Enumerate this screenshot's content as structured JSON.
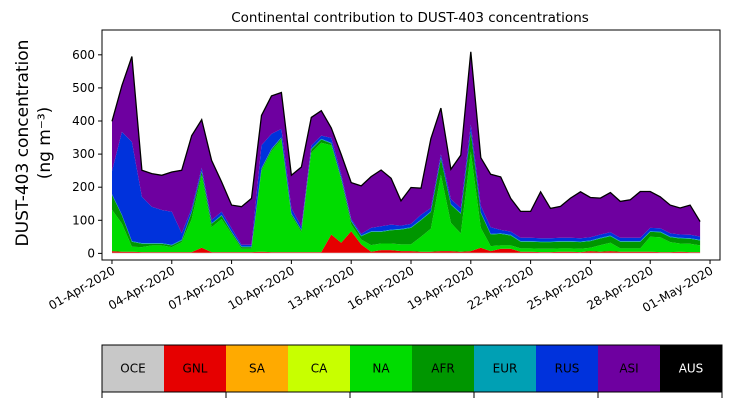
{
  "chart_data": {
    "type": "area",
    "stacked": true,
    "title": "Continental contribution to DUST-403 concentrations",
    "ylabel_line1": "DUST-403 concentration",
    "ylabel_line2": "(ng m⁻³)",
    "xlabel": "",
    "xlim_days": [
      -0.5,
      30.5
    ],
    "ylim": [
      -20,
      675
    ],
    "yticks": [
      0,
      100,
      200,
      300,
      400,
      500,
      600
    ],
    "xticks": [
      {
        "day": 0,
        "label": "01-Apr-2020"
      },
      {
        "day": 3,
        "label": "04-Apr-2020"
      },
      {
        "day": 6,
        "label": "07-Apr-2020"
      },
      {
        "day": 9,
        "label": "10-Apr-2020"
      },
      {
        "day": 12,
        "label": "13-Apr-2020"
      },
      {
        "day": 15,
        "label": "16-Apr-2020"
      },
      {
        "day": 18,
        "label": "19-Apr-2020"
      },
      {
        "day": 21,
        "label": "22-Apr-2020"
      },
      {
        "day": 24,
        "label": "25-Apr-2020"
      },
      {
        "day": 27,
        "label": "28-Apr-2020"
      },
      {
        "day": 30,
        "label": "01-May-2020"
      }
    ],
    "x": [
      "2020-04-01",
      "2020-04-01T12",
      "2020-04-02",
      "2020-04-02T12",
      "2020-04-03",
      "2020-04-03T12",
      "2020-04-04",
      "2020-04-04T12",
      "2020-04-05",
      "2020-04-05T12",
      "2020-04-06",
      "2020-04-06T12",
      "2020-04-07",
      "2020-04-07T12",
      "2020-04-08",
      "2020-04-08T12",
      "2020-04-09",
      "2020-04-09T12",
      "2020-04-10",
      "2020-04-10T12",
      "2020-04-11",
      "2020-04-11T12",
      "2020-04-12",
      "2020-04-12T12",
      "2020-04-13",
      "2020-04-13T12",
      "2020-04-14",
      "2020-04-14T12",
      "2020-04-15",
      "2020-04-15T12",
      "2020-04-16",
      "2020-04-16T12",
      "2020-04-17",
      "2020-04-17T12",
      "2020-04-18",
      "2020-04-18T12",
      "2020-04-19",
      "2020-04-19T12",
      "2020-04-20",
      "2020-04-20T12",
      "2020-04-21",
      "2020-04-21T12",
      "2020-04-22",
      "2020-04-22T12",
      "2020-04-23",
      "2020-04-23T12",
      "2020-04-24",
      "2020-04-24T12",
      "2020-04-25",
      "2020-04-25T12",
      "2020-04-26",
      "2020-04-26T12",
      "2020-04-27",
      "2020-04-27T12",
      "2020-04-28",
      "2020-04-28T12",
      "2020-04-29",
      "2020-04-29T12",
      "2020-04-30",
      "2020-04-30T12"
    ],
    "series": [
      {
        "name": "OCE",
        "color": "#c8c8c8",
        "values": [
          2,
          2,
          2,
          2,
          2,
          2,
          2,
          2,
          2,
          2,
          2,
          2,
          2,
          2,
          2,
          2,
          2,
          2,
          2,
          2,
          2,
          2,
          2,
          2,
          2,
          2,
          2,
          2,
          2,
          2,
          2,
          2,
          2,
          2,
          2,
          2,
          2,
          2,
          2,
          2,
          2,
          2,
          2,
          2,
          2,
          2,
          2,
          2,
          2,
          2,
          2,
          2,
          2,
          2,
          2,
          2,
          2,
          2,
          2,
          2
        ]
      },
      {
        "name": "GNL",
        "color": "#e60000",
        "values": [
          5,
          3,
          3,
          2,
          2,
          2,
          2,
          2,
          2,
          15,
          2,
          2,
          2,
          2,
          2,
          3,
          2,
          2,
          2,
          2,
          2,
          2,
          55,
          30,
          65,
          25,
          3,
          8,
          8,
          5,
          5,
          3,
          3,
          5,
          5,
          3,
          5,
          15,
          5,
          12,
          12,
          3,
          3,
          2,
          2,
          3,
          3,
          2,
          5,
          3,
          5,
          3,
          3,
          3,
          3,
          2,
          2,
          3,
          2,
          2
        ]
      },
      {
        "name": "SA",
        "color": "#ffaa00",
        "values": [
          0,
          0,
          0,
          0,
          0,
          0,
          0,
          0,
          0,
          0,
          0,
          0,
          0,
          0,
          0,
          0,
          0,
          0,
          0,
          0,
          0,
          0,
          0,
          0,
          0,
          0,
          0,
          0,
          0,
          0,
          0,
          0,
          0,
          0,
          0,
          0,
          0,
          0,
          0,
          0,
          0,
          0,
          0,
          0,
          0,
          0,
          0,
          0,
          0,
          0,
          0,
          0,
          0,
          0,
          0,
          0,
          0,
          0,
          0,
          0
        ]
      },
      {
        "name": "CA",
        "color": "#c8ff00",
        "values": [
          0,
          0,
          0,
          0,
          0,
          0,
          0,
          0,
          0,
          0,
          0,
          0,
          0,
          0,
          0,
          0,
          0,
          0,
          0,
          0,
          0,
          0,
          0,
          0,
          0,
          0,
          0,
          0,
          0,
          0,
          0,
          0,
          0,
          0,
          0,
          0,
          0,
          0,
          0,
          0,
          0,
          0,
          0,
          0,
          0,
          0,
          0,
          0,
          0,
          0,
          0,
          0,
          0,
          0,
          0,
          0,
          0,
          0,
          0,
          0
        ]
      },
      {
        "name": "NA",
        "color": "#00dc00",
        "values": [
          125,
          85,
          15,
          15,
          20,
          20,
          15,
          30,
          100,
          220,
          75,
          100,
          55,
          10,
          10,
          245,
          305,
          340,
          110,
          60,
          300,
          330,
          270,
          190,
          20,
          15,
          20,
          20,
          20,
          20,
          20,
          45,
          70,
          230,
          85,
          55,
          300,
          60,
          15,
          10,
          10,
          10,
          10,
          10,
          10,
          10,
          10,
          10,
          10,
          20,
          25,
          10,
          10,
          10,
          45,
          45,
          30,
          25,
          25,
          20
        ]
      },
      {
        "name": "AFR",
        "color": "#009600",
        "values": [
          45,
          25,
          15,
          10,
          5,
          5,
          5,
          5,
          20,
          10,
          10,
          10,
          5,
          5,
          5,
          5,
          5,
          5,
          5,
          5,
          10,
          10,
          5,
          5,
          10,
          10,
          40,
          35,
          40,
          45,
          50,
          50,
          50,
          50,
          55,
          60,
          60,
          45,
          35,
          35,
          30,
          20,
          20,
          20,
          20,
          20,
          20,
          20,
          20,
          20,
          20,
          20,
          20,
          20,
          15,
          15,
          15,
          15,
          15,
          15
        ]
      },
      {
        "name": "EUR",
        "color": "#00a0b4",
        "values": [
          2,
          2,
          2,
          2,
          2,
          2,
          2,
          2,
          2,
          2,
          2,
          2,
          2,
          2,
          2,
          2,
          2,
          2,
          2,
          2,
          2,
          2,
          2,
          2,
          2,
          2,
          2,
          2,
          2,
          2,
          2,
          2,
          2,
          2,
          2,
          2,
          2,
          2,
          2,
          2,
          2,
          2,
          2,
          2,
          2,
          2,
          2,
          2,
          2,
          2,
          2,
          2,
          2,
          2,
          2,
          2,
          2,
          2,
          2,
          2
        ]
      },
      {
        "name": "RUS",
        "color": "#0032dc",
        "values": [
          70,
          250,
          300,
          140,
          110,
          100,
          100,
          20,
          10,
          10,
          10,
          10,
          10,
          5,
          5,
          70,
          45,
          25,
          15,
          10,
          10,
          10,
          15,
          10,
          5,
          5,
          10,
          15,
          15,
          10,
          10,
          15,
          10,
          10,
          15,
          15,
          20,
          20,
          20,
          10,
          10,
          10,
          10,
          10,
          10,
          10,
          10,
          10,
          10,
          10,
          10,
          10,
          10,
          10,
          10,
          10,
          10,
          10,
          10,
          10
        ]
      },
      {
        "name": "ASI",
        "color": "#6e00a0",
        "values": [
          150,
          140,
          258,
          80,
          100,
          105,
          120,
          190,
          220,
          145,
          180,
          90,
          70,
          115,
          140,
          90,
          115,
          110,
          100,
          180,
          85,
          75,
          30,
          60,
          110,
          145,
          155,
          170,
          140,
          75,
          110,
          80,
          210,
          140,
          90,
          160,
          220,
          145,
          160,
          160,
          100,
          80,
          80,
          140,
          90,
          95,
          120,
          140,
          120,
          110,
          120,
          110,
          115,
          140,
          110,
          95,
          85,
          80,
          90,
          45
        ]
      },
      {
        "name": "AUS",
        "color": "#000000",
        "values": [
          0,
          0,
          0,
          0,
          0,
          0,
          0,
          0,
          0,
          0,
          0,
          0,
          0,
          0,
          0,
          0,
          0,
          0,
          0,
          0,
          0,
          0,
          0,
          0,
          0,
          0,
          0,
          0,
          0,
          0,
          0,
          0,
          0,
          0,
          0,
          0,
          0,
          0,
          0,
          0,
          0,
          0,
          0,
          0,
          0,
          0,
          0,
          0,
          0,
          0,
          0,
          0,
          0,
          0,
          0,
          0,
          0,
          0,
          0,
          0
        ]
      }
    ],
    "grid": false,
    "legend": "colorbar-below"
  }
}
